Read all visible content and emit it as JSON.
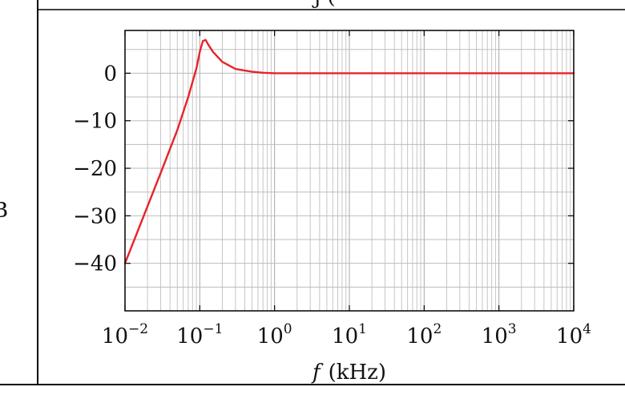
{
  "table": {
    "header_fragment": "j  (",
    "left_edge_glyph": "B"
  },
  "chart_data": {
    "type": "line",
    "xscale": "log",
    "xlim": [
      0.01,
      10000
    ],
    "ylim": [
      -50,
      9
    ],
    "grid": true,
    "xlabel": "",
    "xlabel_var": "f",
    "xlabel_unit": "(kHz)",
    "yticks": [
      0,
      -10,
      -20,
      -30,
      -40
    ],
    "yticklabels": [
      "0",
      "−10",
      "−20",
      "−30",
      "−40"
    ],
    "xticks": [
      {
        "base": "10",
        "exp": "−2",
        "value": 0.01
      },
      {
        "base": "10",
        "exp": "−1",
        "value": 0.1
      },
      {
        "base": "10",
        "exp": "0",
        "value": 1
      },
      {
        "base": "10",
        "exp": "1",
        "value": 10
      },
      {
        "base": "10",
        "exp": "2",
        "value": 100
      },
      {
        "base": "10",
        "exp": "3",
        "value": 1000
      },
      {
        "base": "10",
        "exp": "4",
        "value": 10000
      }
    ],
    "series": [
      {
        "color": "#e8232a",
        "x": [
          0.01,
          0.02,
          0.03,
          0.05,
          0.07,
          0.09,
          0.1,
          0.11,
          0.12,
          0.13,
          0.15,
          0.2,
          0.3,
          0.5,
          0.7,
          1,
          2,
          10,
          100,
          1000,
          10000
        ],
        "y": [
          -40,
          -28,
          -21,
          -12,
          -5,
          1,
          4.5,
          6.8,
          7.0,
          6.0,
          4.5,
          2.4,
          0.9,
          0.3,
          0.1,
          0,
          0,
          0,
          0,
          0,
          0
        ]
      }
    ]
  }
}
